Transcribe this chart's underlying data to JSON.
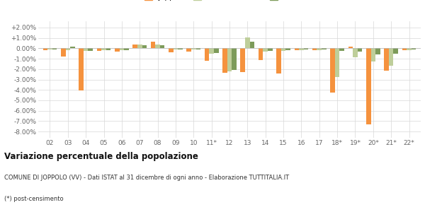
{
  "years": [
    "02",
    "03",
    "04",
    "05",
    "06",
    "07",
    "08",
    "09",
    "10",
    "11*",
    "12",
    "13",
    "14",
    "15",
    "16",
    "17",
    "18*",
    "19*",
    "20*",
    "21*",
    "22*"
  ],
  "joppolo": [
    -0.18,
    -0.8,
    -4.05,
    -0.25,
    -0.3,
    0.35,
    0.65,
    -0.42,
    -0.35,
    -1.2,
    -2.35,
    -2.3,
    -1.1,
    -2.45,
    -0.2,
    -0.18,
    -4.25,
    0.15,
    -7.3,
    -2.15,
    -0.2
  ],
  "provincia_vv": [
    -0.14,
    -0.18,
    -0.28,
    -0.18,
    -0.18,
    0.33,
    0.38,
    -0.1,
    -0.1,
    -0.52,
    -2.25,
    1.05,
    -0.35,
    -0.22,
    -0.18,
    -0.18,
    -2.75,
    -0.85,
    -1.3,
    -1.65,
    -0.18
  ],
  "calabria": [
    -0.12,
    0.15,
    -0.22,
    -0.18,
    -0.18,
    0.28,
    0.32,
    -0.09,
    -0.09,
    -0.48,
    -2.1,
    0.6,
    -0.22,
    -0.18,
    -0.14,
    -0.14,
    -0.25,
    -0.32,
    -0.62,
    -0.52,
    -0.14
  ],
  "joppolo_color": "#f5923e",
  "provincia_color": "#bece9a",
  "calabria_color": "#7d9b5a",
  "bg_color": "#ffffff",
  "grid_color": "#d8d8d8",
  "title": "Variazione percentuale della popolazione",
  "subtitle": "COMUNE DI JOPPOLO (VV) - Dati ISTAT al 31 dicembre di ogni anno - Elaborazione TUTTITALIA.IT",
  "footnote": "(*) post-censimento",
  "ylim_min": -8.6,
  "ylim_max": 2.6,
  "yticks": [
    2.0,
    1.0,
    0.0,
    -1.0,
    -2.0,
    -3.0,
    -4.0,
    -5.0,
    -6.0,
    -7.0,
    -8.0
  ],
  "bar_width": 0.26
}
